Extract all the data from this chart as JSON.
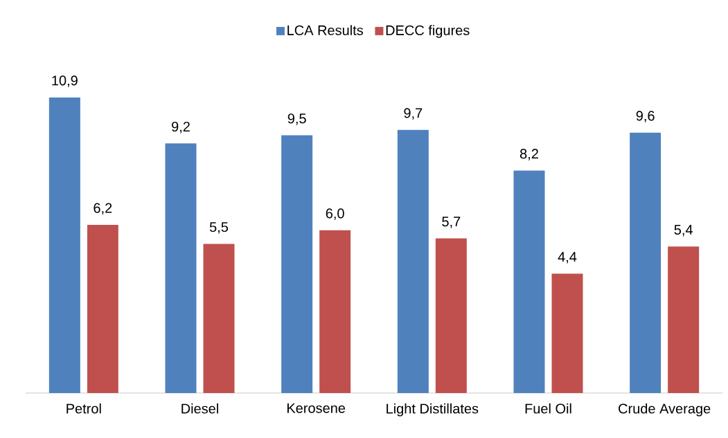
{
  "chart_data": {
    "type": "bar",
    "categories": [
      "Petrol",
      "Diesel",
      "Kerosene",
      "Light Distillates",
      "Fuel Oil",
      "Crude Average"
    ],
    "series": [
      {
        "name": "LCA Results",
        "color": "#4f81bd",
        "values": [
          10.9,
          9.2,
          9.5,
          9.7,
          8.2,
          9.6
        ],
        "value_labels": [
          "10,9",
          "9,2",
          "9,5",
          "9,7",
          "8,2",
          "9,6"
        ]
      },
      {
        "name": "DECC figures",
        "color": "#c0504d",
        "values": [
          6.2,
          5.5,
          6.0,
          5.7,
          4.4,
          5.4
        ],
        "value_labels": [
          "6,2",
          "5,5",
          "6,0",
          "5,7",
          "4,4",
          "5,4"
        ]
      }
    ],
    "legend": "top"
  }
}
